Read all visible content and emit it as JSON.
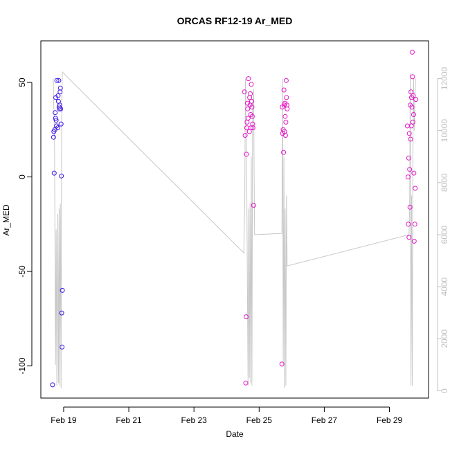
{
  "chart_data": {
    "type": "scatter",
    "title": "ORCAS RF12-19 Ar_MED",
    "xlabel": "Date",
    "ylabel": "Ar_MED",
    "x_unit": "days in February",
    "xlim": [
      18.3,
      30.2
    ],
    "ylim": [
      -117,
      72
    ],
    "y2lim": [
      -280,
      13450
    ],
    "x_ticks": [
      19,
      21,
      23,
      25,
      27,
      29
    ],
    "x_tick_labels": [
      "Feb 19",
      "Feb 21",
      "Feb 23",
      "Feb 25",
      "Feb 27",
      "Feb 29"
    ],
    "y_ticks": [
      -100,
      -50,
      0,
      50
    ],
    "y_tick_labels": [
      "-100",
      "-50",
      "0",
      "50"
    ],
    "y2_ticks": [
      0,
      2000,
      4000,
      6000,
      8000,
      10000,
      12000
    ],
    "y2_tick_labels": [
      "0",
      "2000",
      "4000",
      "6000",
      "8000",
      "10000",
      "12000"
    ],
    "colors": {
      "early": "#3c14e6",
      "late": "#e614c8",
      "secondary_series": "#c8c8c8"
    },
    "points": [
      {
        "x": 18.66,
        "y": -110
      },
      {
        "x": 18.69,
        "y": 21
      },
      {
        "x": 18.7,
        "y": 24
      },
      {
        "x": 18.71,
        "y": 2
      },
      {
        "x": 18.73,
        "y": 25
      },
      {
        "x": 18.74,
        "y": 34
      },
      {
        "x": 18.75,
        "y": 31
      },
      {
        "x": 18.76,
        "y": 42
      },
      {
        "x": 18.77,
        "y": 30
      },
      {
        "x": 18.78,
        "y": 27
      },
      {
        "x": 18.79,
        "y": 51
      },
      {
        "x": 18.82,
        "y": 26
      },
      {
        "x": 18.83,
        "y": 43
      },
      {
        "x": 18.84,
        "y": 40
      },
      {
        "x": 18.85,
        "y": 51
      },
      {
        "x": 18.86,
        "y": 37
      },
      {
        "x": 18.87,
        "y": 36
      },
      {
        "x": 18.88,
        "y": 38
      },
      {
        "x": 18.89,
        "y": 45
      },
      {
        "x": 18.9,
        "y": 47
      },
      {
        "x": 18.91,
        "y": 36
      },
      {
        "x": 18.92,
        "y": 28
      },
      {
        "x": 18.93,
        "y": 0.5
      },
      {
        "x": 18.94,
        "y": -72
      },
      {
        "x": 18.95,
        "y": -90
      },
      {
        "x": 18.96,
        "y": -60
      },
      {
        "x": 24.55,
        "y": 45
      },
      {
        "x": 24.57,
        "y": 22
      },
      {
        "x": 24.59,
        "y": -109
      },
      {
        "x": 24.6,
        "y": -74
      },
      {
        "x": 24.61,
        "y": 12
      },
      {
        "x": 24.62,
        "y": 26
      },
      {
        "x": 24.63,
        "y": 29
      },
      {
        "x": 24.64,
        "y": 39
      },
      {
        "x": 24.65,
        "y": 36
      },
      {
        "x": 24.66,
        "y": 31
      },
      {
        "x": 24.67,
        "y": 52
      },
      {
        "x": 24.7,
        "y": 24
      },
      {
        "x": 24.71,
        "y": 42
      },
      {
        "x": 24.72,
        "y": 38
      },
      {
        "x": 24.73,
        "y": 44
      },
      {
        "x": 24.74,
        "y": 33
      },
      {
        "x": 24.75,
        "y": 26
      },
      {
        "x": 24.76,
        "y": 49
      },
      {
        "x": 24.77,
        "y": 40
      },
      {
        "x": 24.78,
        "y": 37
      },
      {
        "x": 24.79,
        "y": 32
      },
      {
        "x": 24.8,
        "y": 28
      },
      {
        "x": 24.81,
        "y": 26
      },
      {
        "x": 24.83,
        "y": -15
      },
      {
        "x": 25.7,
        "y": -99
      },
      {
        "x": 25.71,
        "y": 37
      },
      {
        "x": 25.72,
        "y": 23
      },
      {
        "x": 25.74,
        "y": 25
      },
      {
        "x": 25.75,
        "y": 13
      },
      {
        "x": 25.76,
        "y": 46
      },
      {
        "x": 25.77,
        "y": 38
      },
      {
        "x": 25.78,
        "y": 24
      },
      {
        "x": 25.79,
        "y": 39
      },
      {
        "x": 25.8,
        "y": 32
      },
      {
        "x": 25.81,
        "y": 22
      },
      {
        "x": 25.82,
        "y": 29
      },
      {
        "x": 25.83,
        "y": 51
      },
      {
        "x": 25.84,
        "y": 42
      },
      {
        "x": 25.85,
        "y": 38
      },
      {
        "x": 25.86,
        "y": 36
      },
      {
        "x": 29.55,
        "y": 27
      },
      {
        "x": 29.57,
        "y": 0
      },
      {
        "x": 29.58,
        "y": -25
      },
      {
        "x": 29.59,
        "y": 10
      },
      {
        "x": 29.6,
        "y": -32
      },
      {
        "x": 29.61,
        "y": 23
      },
      {
        "x": 29.62,
        "y": 4
      },
      {
        "x": 29.63,
        "y": -16
      },
      {
        "x": 29.64,
        "y": 38
      },
      {
        "x": 29.65,
        "y": 20
      },
      {
        "x": 29.66,
        "y": 45
      },
      {
        "x": 29.67,
        "y": 27
      },
      {
        "x": 29.68,
        "y": 42
      },
      {
        "x": 29.69,
        "y": 37
      },
      {
        "x": 29.7,
        "y": 66
      },
      {
        "x": 29.71,
        "y": 53
      },
      {
        "x": 29.72,
        "y": 29
      },
      {
        "x": 29.73,
        "y": 43
      },
      {
        "x": 29.74,
        "y": 33
      },
      {
        "x": 29.75,
        "y": 2
      },
      {
        "x": 29.76,
        "y": -34
      },
      {
        "x": 29.78,
        "y": -25
      },
      {
        "x": 29.79,
        "y": -6
      },
      {
        "x": 29.81,
        "y": 41
      }
    ],
    "secondary_series": [
      [
        18.68,
        12000
      ],
      [
        18.72,
        9500
      ],
      [
        18.75,
        1000
      ],
      [
        18.77,
        6200
      ],
      [
        18.79,
        200
      ],
      [
        18.82,
        6800
      ],
      [
        18.84,
        300
      ],
      [
        18.86,
        7000
      ],
      [
        18.88,
        200
      ],
      [
        18.9,
        7200
      ],
      [
        18.92,
        100
      ],
      [
        18.94,
        11000
      ],
      [
        18.96,
        12250
      ],
      [
        24.53,
        5300
      ],
      [
        24.56,
        7500
      ],
      [
        24.58,
        12000
      ],
      [
        24.62,
        8000
      ],
      [
        24.66,
        200
      ],
      [
        24.68,
        7000
      ],
      [
        24.7,
        500
      ],
      [
        24.72,
        7200
      ],
      [
        24.74,
        300
      ],
      [
        24.76,
        9000
      ],
      [
        24.78,
        200
      ],
      [
        24.8,
        11000
      ],
      [
        24.83,
        11600
      ],
      [
        24.86,
        6000
      ],
      [
        25.7,
        6050
      ],
      [
        25.72,
        12000
      ],
      [
        25.74,
        1000
      ],
      [
        25.76,
        9000
      ],
      [
        25.78,
        100
      ],
      [
        25.8,
        7000
      ],
      [
        25.82,
        200
      ],
      [
        25.84,
        7500
      ],
      [
        25.86,
        4800
      ],
      [
        29.6,
        6000
      ],
      [
        29.62,
        7000
      ],
      [
        29.64,
        12200
      ],
      [
        29.66,
        200
      ],
      [
        29.68,
        7500
      ],
      [
        29.7,
        200
      ],
      [
        29.72,
        9000
      ],
      [
        29.74,
        12000
      ],
      [
        29.76,
        10000
      ],
      [
        29.8,
        12000
      ]
    ]
  }
}
